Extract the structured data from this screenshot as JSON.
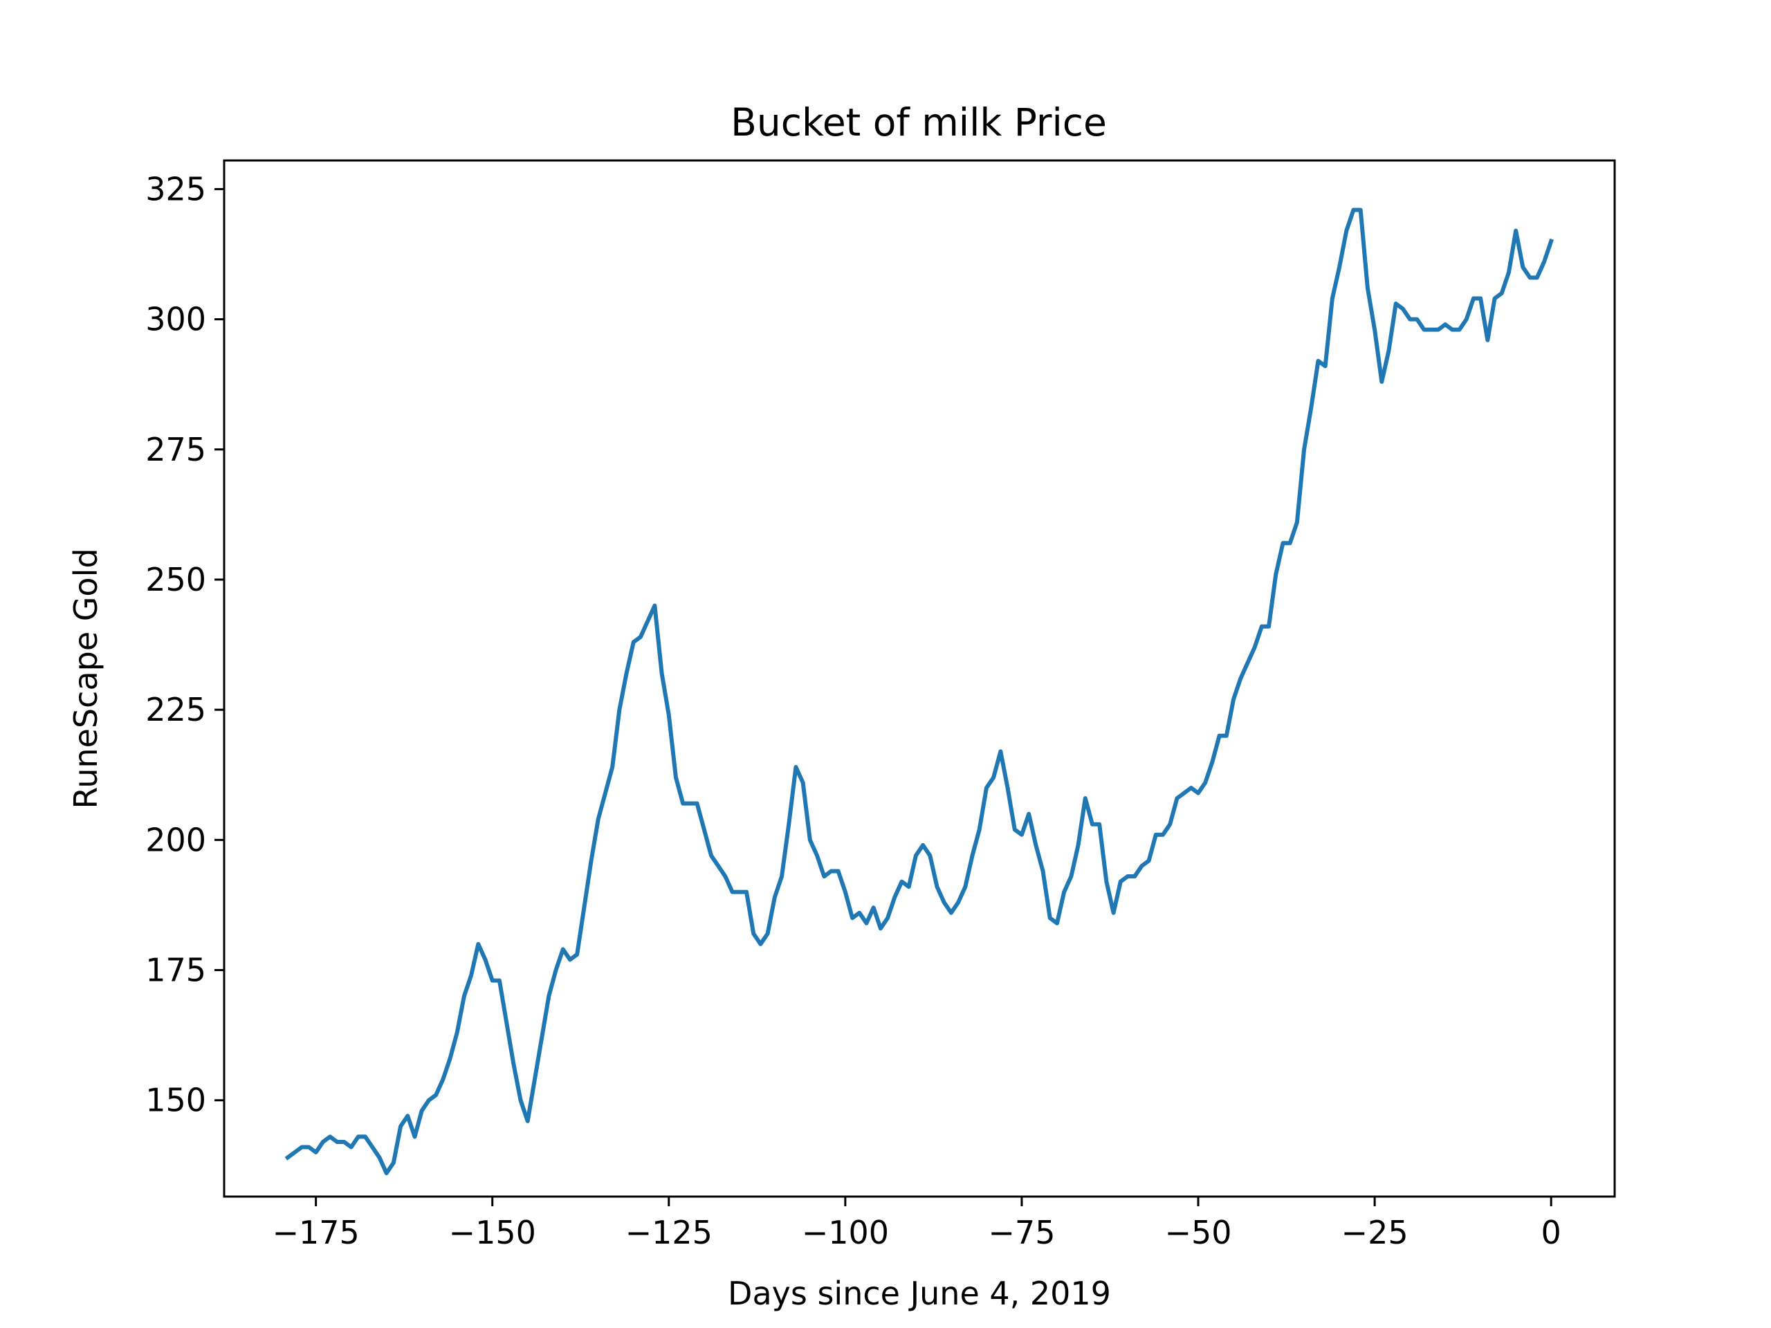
{
  "chart_data": {
    "type": "line",
    "title": "Bucket of milk Price",
    "xlabel": "Days since June 4, 2019",
    "ylabel": "RuneScape Gold",
    "xlim": [
      -188,
      9
    ],
    "ylim": [
      131.5,
      330.5
    ],
    "x_ticks": [
      -175,
      -150,
      -125,
      -100,
      -75,
      -50,
      -25,
      0
    ],
    "x_tick_labels": [
      "−175",
      "−150",
      "−125",
      "−100",
      "−75",
      "−50",
      "−25",
      "0"
    ],
    "y_ticks": [
      150,
      175,
      200,
      225,
      250,
      275,
      300,
      325
    ],
    "y_tick_labels": [
      "150",
      "175",
      "200",
      "225",
      "250",
      "275",
      "300",
      "325"
    ],
    "grid": false,
    "line_color": "#1f77b4",
    "series": [
      {
        "x": [
          -179,
          -178,
          -177,
          -176,
          -175,
          -174,
          -173,
          -172,
          -171,
          -170,
          -169,
          -168,
          -167,
          -166,
          -165,
          -164,
          -163,
          -162,
          -161,
          -160,
          -159,
          -158,
          -157,
          -156,
          -155,
          -154,
          -153,
          -152,
          -151,
          -150,
          -149,
          -148,
          -147,
          -146,
          -145,
          -144,
          -143,
          -142,
          -141,
          -140,
          -139,
          -138,
          -137,
          -136,
          -135,
          -134,
          -133,
          -132,
          -131,
          -130,
          -129,
          -128,
          -127,
          -126,
          -125,
          -124,
          -123,
          -122,
          -121,
          -120,
          -119,
          -118,
          -117,
          -116,
          -115,
          -114,
          -113,
          -112,
          -111,
          -110,
          -109,
          -108,
          -107,
          -106,
          -105,
          -104,
          -103,
          -102,
          -101,
          -100,
          -99,
          -98,
          -97,
          -96,
          -95,
          -94,
          -93,
          -92,
          -91,
          -90,
          -89,
          -88,
          -87,
          -86,
          -85,
          -84,
          -83,
          -82,
          -81,
          -80,
          -79,
          -78,
          -77,
          -76,
          -75,
          -74,
          -73,
          -72,
          -71,
          -70,
          -69,
          -68,
          -67,
          -66,
          -65,
          -64,
          -63,
          -62,
          -61,
          -60,
          -59,
          -58,
          -57,
          -56,
          -55,
          -54,
          -53,
          -52,
          -51,
          -50,
          -49,
          -48,
          -47,
          -46,
          -45,
          -44,
          -43,
          -42,
          -41,
          -40,
          -39,
          -38,
          -37,
          -36,
          -35,
          -34,
          -33,
          -32,
          -31,
          -30,
          -29,
          -28,
          -27,
          -26,
          -25,
          -24,
          -23,
          -22,
          -21,
          -20,
          -19,
          -18,
          -17,
          -16,
          -15,
          -14,
          -13,
          -12,
          -11,
          -10,
          -9,
          -8,
          -7,
          -6,
          -5,
          -4,
          -3,
          -2,
          -1,
          0
        ],
        "y": [
          139,
          140,
          141,
          141,
          140,
          142,
          143,
          142,
          142,
          141,
          143,
          143,
          141,
          139,
          136,
          138,
          145,
          147,
          143,
          148,
          150,
          151,
          154,
          158,
          163,
          170,
          174,
          180,
          177,
          173,
          173,
          165,
          157,
          150,
          146,
          154,
          162,
          170,
          175,
          179,
          177,
          178,
          187,
          196,
          204,
          209,
          214,
          225,
          232,
          238,
          239,
          242,
          245,
          232,
          224,
          212,
          207,
          207,
          207,
          202,
          197,
          195,
          193,
          190,
          190,
          190,
          182,
          180,
          182,
          189,
          193,
          203,
          214,
          211,
          200,
          197,
          193,
          194,
          194,
          190,
          185,
          186,
          184,
          187,
          183,
          185,
          189,
          192,
          191,
          197,
          199,
          197,
          191,
          188,
          186,
          188,
          191,
          197,
          202,
          210,
          212,
          217,
          210,
          202,
          201,
          205,
          199,
          194,
          185,
          184,
          190,
          193,
          199,
          208,
          203,
          203,
          192,
          186,
          192,
          193,
          193,
          195,
          196,
          201,
          201,
          203,
          208,
          209,
          210,
          209,
          211,
          215,
          220,
          220,
          227,
          231,
          234,
          237,
          241,
          241,
          251,
          257,
          257,
          261,
          275,
          283,
          292,
          291,
          304,
          310,
          317,
          321,
          321,
          306,
          298,
          288,
          294,
          303,
          302,
          300,
          300,
          298,
          298,
          298,
          299,
          298,
          298,
          300,
          304,
          304,
          296,
          304,
          305,
          309,
          317,
          310,
          308,
          308,
          311,
          315
        ]
      }
    ]
  }
}
